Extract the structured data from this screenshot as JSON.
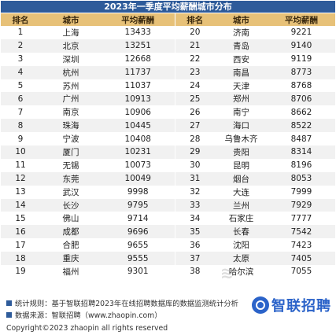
{
  "title": "2023年一季度平均薪酬城市分布",
  "headers": [
    "排名",
    "城市",
    "平均薪酬",
    "排名",
    "城市",
    "平均薪酬"
  ],
  "rows": [
    [
      "1",
      "上海",
      "13433",
      "20",
      "济南",
      "9221"
    ],
    [
      "2",
      "北京",
      "13251",
      "21",
      "青岛",
      "9140"
    ],
    [
      "3",
      "深圳",
      "12668",
      "22",
      "西安",
      "9119"
    ],
    [
      "4",
      "杭州",
      "11737",
      "23",
      "南昌",
      "8773"
    ],
    [
      "5",
      "苏州",
      "11037",
      "24",
      "天津",
      "8768"
    ],
    [
      "6",
      "广州",
      "10913",
      "25",
      "郑州",
      "8706"
    ],
    [
      "7",
      "南京",
      "10906",
      "26",
      "南宁",
      "8662"
    ],
    [
      "8",
      "珠海",
      "10445",
      "27",
      "海口",
      "8522"
    ],
    [
      "9",
      "宁波",
      "10408",
      "28",
      "乌鲁木齐",
      "8487"
    ],
    [
      "10",
      "厦门",
      "10231",
      "29",
      "贵阳",
      "8314"
    ],
    [
      "11",
      "无锡",
      "10073",
      "30",
      "昆明",
      "8196"
    ],
    [
      "12",
      "东莞",
      "10049",
      "31",
      "烟台",
      "8053"
    ],
    [
      "13",
      "武汉",
      "9998",
      "32",
      "大连",
      "7999"
    ],
    [
      "14",
      "长沙",
      "9795",
      "33",
      "兰州",
      "7929"
    ],
    [
      "15",
      "佛山",
      "9714",
      "34",
      "石家庄",
      "7777"
    ],
    [
      "16",
      "成都",
      "9696",
      "35",
      "长春",
      "7542"
    ],
    [
      "17",
      "合肥",
      "9655",
      "36",
      "沈阳",
      "7423"
    ],
    [
      "18",
      "重庆",
      "9555",
      "37",
      "太原",
      "7405"
    ],
    [
      "19",
      "福州",
      "9301",
      "38",
      "哈尔滨",
      "7055"
    ]
  ],
  "notes": {
    "rule": "统计规则：基于智联招聘2023年在线招聘数据库的数据监测统计分析",
    "source": "数据来源：智联招聘（www.zhaopin.com）",
    "copyright": "Copyright©2023 zhaopin all rights reserved"
  },
  "brand": "智联招聘",
  "colors": {
    "title_bg": "#2e5b9a",
    "header_bg": "#e7c178",
    "brand": "#2b63c9"
  }
}
